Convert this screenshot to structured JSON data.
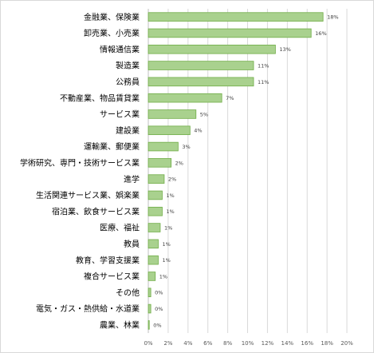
{
  "chart_data": {
    "type": "bar",
    "orientation": "horizontal",
    "categories": [
      "金融業、保険業",
      "卸売業、小売業",
      "情報通信業",
      "製造業",
      "公務員",
      "不動産業、物品賃貸業",
      "サービス業",
      "建設業",
      "運輸業、郵便業",
      "学術研究、専門・技術サービス業",
      "進学",
      "生活関連サービス業、娯楽業",
      "宿泊業、飲食サービス業",
      "医療、福祉",
      "教員",
      "教育、学習支援業",
      "複合サービス業",
      "その他",
      "電気・ガス・熱供給・水道業",
      "農業、林業"
    ],
    "values": [
      17.6,
      16.4,
      12.8,
      10.6,
      10.6,
      7.4,
      4.8,
      4.2,
      3.0,
      2.3,
      1.6,
      1.4,
      1.4,
      1.2,
      1.0,
      1.0,
      0.7,
      0.25,
      0.25,
      0.08
    ],
    "value_labels": [
      "18%",
      "16%",
      "13%",
      "11%",
      "11%",
      "7%",
      "5%",
      "4%",
      "3%",
      "2%",
      "2%",
      "1%",
      "1%",
      "1%",
      "1%",
      "1%",
      "1%",
      "0%",
      "0%",
      "0%"
    ],
    "x_ticks": [
      "0%",
      "2%",
      "4%",
      "6%",
      "8%",
      "10%",
      "12%",
      "14%",
      "16%",
      "18%",
      "20%"
    ],
    "xlim": [
      0,
      20
    ],
    "grid": true,
    "legend": "none",
    "bar_color": "#a9d18e",
    "bar_border_color": "#70ad47",
    "title": "",
    "xlabel": "",
    "ylabel": ""
  }
}
